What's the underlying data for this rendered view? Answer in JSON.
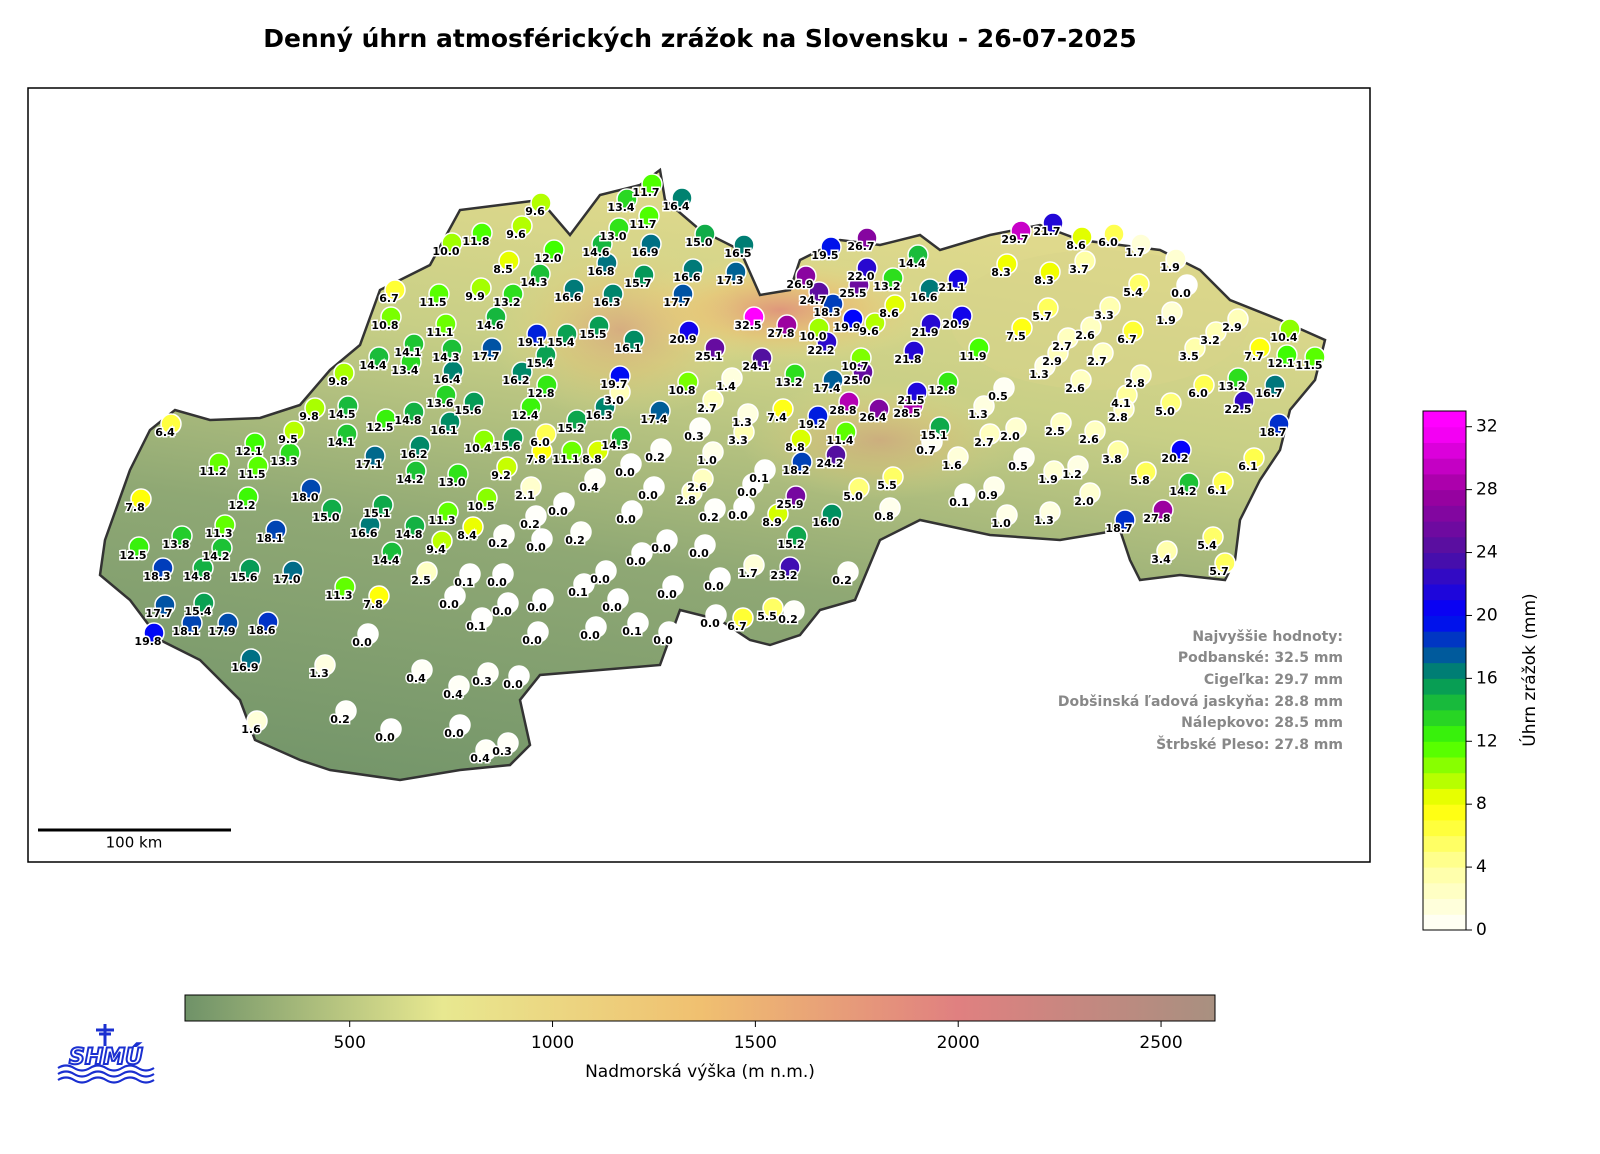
{
  "title": "Denný úhrn atmosférických zrážok na Slovensku - 26-07-2025",
  "stations": {
    "values": [
      9.6,
      11.7,
      13.4,
      16.4,
      11.7,
      13.0,
      11.8,
      9.6,
      10.0,
      14.6,
      16.9,
      15.0,
      16.5,
      12.0,
      8.5,
      16.8,
      14.3,
      15.7,
      16.6,
      17.3,
      6.7,
      11.5,
      9.9,
      13.2,
      16.6,
      16.3,
      17.7,
      10.8,
      11.1,
      14.6,
      19.1,
      15.4,
      15.5,
      16.1,
      20.9,
      14.1,
      14.3,
      17.7,
      15.4,
      14.4,
      13.4,
      16.4,
      16.2,
      9.8,
      12.8,
      19.7,
      3.0,
      10.8,
      1.4,
      25.1,
      13.6,
      15.6,
      12.4,
      16.3,
      17.4,
      2.7,
      1.3,
      9.8,
      14.5,
      12.5,
      14.8,
      16.1,
      15.2,
      6.4,
      9.5,
      14.1,
      16.2,
      10.4,
      15.6,
      6.0,
      14.3,
      0.3,
      3.3,
      7.8,
      11.1,
      8.8,
      0.2,
      1.0,
      12.1,
      13.3,
      17.1,
      11.2,
      11.5,
      14.2,
      13.0,
      9.2,
      0.0,
      0.4,
      0.0,
      2.6,
      2.8,
      0.1,
      0.0,
      7.8,
      18.0,
      12.2,
      2.1,
      10.5,
      15.1,
      15.0,
      0.0,
      0.2,
      0.0,
      0.2,
      0.0,
      11.3,
      18.1,
      11.3,
      16.6,
      14.8,
      8.4,
      0.2,
      0.0,
      0.2,
      13.8,
      9.4,
      14.4,
      14.2,
      12.5,
      0.0,
      0.0,
      0.0,
      18.3,
      14.8,
      15.6,
      17.0,
      2.5,
      0.1,
      0.0,
      0.0,
      0.1,
      0.0,
      0.0,
      11.3,
      7.8,
      0.0,
      17.7,
      15.4,
      0.0,
      0.0,
      0.0,
      0.1,
      17.9,
      18.6,
      18.1,
      19.8,
      0.0,
      0.0,
      0.0,
      0.1,
      0.0,
      0.0,
      6.7,
      5.5,
      0.2,
      16.9,
      1.3,
      0.4,
      0.4,
      0.3,
      0.0,
      0.2,
      1.6,
      0.0,
      0.0,
      0.4,
      0.3,
      19.5,
      26.7,
      22.0,
      14.4,
      26.9,
      25.5,
      13.2,
      16.6,
      21.1,
      24.7,
      18.3,
      8.6,
      32.5,
      27.8,
      10.0,
      19.9,
      9.6,
      21.9,
      20.9,
      22.2,
      10.7,
      21.8,
      24.1,
      13.2,
      25.0,
      11.9,
      17.4,
      28.8,
      26.4,
      28.5,
      21.5,
      12.8,
      7.4,
      19.2,
      15.1,
      0.7,
      8.8,
      11.4,
      24.2,
      18.2,
      1.6,
      5.5,
      5.0,
      25.9,
      0.8,
      8.9,
      16.0,
      15.2,
      1.7,
      23.2,
      0.2,
      0.1,
      0.9,
      1.0,
      1.3,
      2.0,
      0.5,
      1.3,
      2.7,
      2.0,
      0.5,
      1.9,
      1.2,
      2.5,
      2.6,
      3.8,
      5.8,
      18.7,
      27.8,
      3.4,
      5.4,
      5.7,
      14.2,
      6.1,
      20.2,
      6.1,
      18.7,
      22.5,
      16.7,
      13.2,
      6.0,
      5.0,
      2.8,
      4.1,
      2.8,
      2.6,
      1.3,
      2.9,
      2.7,
      2.7,
      2.6,
      6.7,
      7.5,
      5.7,
      3.3,
      5.4,
      1.9,
      3.5,
      3.2,
      2.9,
      7.7,
      10.4,
      12.1,
      11.5,
      0.0,
      1.9,
      1.7,
      6.0,
      8.6,
      21.7,
      29.7,
      8.3,
      8.3,
      3.7
    ],
    "value_labels": [
      "9.6",
      "11.7",
      "13.4",
      "16.4",
      "11.7",
      "13.0",
      "11.8",
      "9.6",
      "10.0",
      "14.6",
      "16.9",
      "15.0",
      "16.5",
      "12.0",
      "8.5",
      "16.8",
      "14.3",
      "15.7",
      "16.6",
      "17.3",
      "6.7",
      "11.5",
      "9.9",
      "13.2",
      "16.6",
      "16.3",
      "17.7",
      "10.8",
      "11.1",
      "14.6",
      "19.1",
      "15.4",
      "15.5",
      "16.1",
      "20.9",
      "14.1",
      "14.3",
      "17.7",
      "15.4",
      "14.4",
      "13.4",
      "16.4",
      "16.2",
      "9.8",
      "12.8",
      "19.7",
      "3.0",
      "10.8",
      "1.4",
      "25.1",
      "13.6",
      "15.6",
      "12.4",
      "16.3",
      "17.4",
      "2.7",
      "1.3",
      "9.8",
      "14.5",
      "12.5",
      "14.8",
      "16.1",
      "15.2",
      "6.4",
      "9.5",
      "14.1",
      "16.2",
      "10.4",
      "15.6",
      "6.0",
      "14.3",
      "0.3",
      "3.3",
      "7.8",
      "11.1",
      "8.8",
      "0.2",
      "1.0",
      "12.1",
      "13.3",
      "17.1",
      "11.2",
      "11.5",
      "14.2",
      "13.0",
      "9.2",
      "0.0",
      "0.4",
      "0.0",
      "2.6",
      "2.8",
      "0.1",
      "0.0",
      "7.8",
      "18.0",
      "12.2",
      "2.1",
      "10.5",
      "15.1",
      "15.0",
      "0.0",
      "0.2",
      "0.0",
      "0.2",
      "0.0",
      "11.3",
      "18.1",
      "11.3",
      "16.6",
      "14.8",
      "8.4",
      "0.2",
      "0.0",
      "0.2",
      "13.8",
      "9.4",
      "14.4",
      "14.2",
      "12.5",
      "0.0",
      "0.0",
      "0.0",
      "18.3",
      "14.8",
      "15.6",
      "17.0",
      "2.5",
      "0.1",
      "0.0",
      "0.0",
      "0.1",
      "0.0",
      "0.0",
      "11.3",
      "7.8",
      "0.0",
      "17.7",
      "15.4",
      "0.0",
      "0.0",
      "0.0",
      "0.1",
      "17.9",
      "18.6",
      "18.1",
      "19.8",
      "0.0",
      "0.0",
      "0.0",
      "0.1",
      "0.0",
      "0.0",
      "6.7",
      "5.5",
      "0.2",
      "16.9",
      "1.3",
      "0.4",
      "0.4",
      "0.3",
      "0.0",
      "0.2",
      "1.6",
      "0.0",
      "0.0",
      "0.4",
      "0.3",
      "19.5",
      "26.7",
      "22.0",
      "14.4",
      "26.9",
      "25.5",
      "13.2",
      "16.6",
      "21.1",
      "24.7",
      "18.3",
      "8.6",
      "32.5",
      "27.8",
      "10.0",
      "19.9",
      "9.6",
      "21.9",
      "20.9",
      "22.2",
      "10.7",
      "21.8",
      "24.1",
      "13.2",
      "25.0",
      "11.9",
      "17.4",
      "28.8",
      "26.4",
      "28.5",
      "21.5",
      "12.8",
      "7.4",
      "19.2",
      "15.1",
      "0.7",
      "8.8",
      "11.4",
      "24.2",
      "18.2",
      "1.6",
      "5.5",
      "5.0",
      "25.9",
      "0.8",
      "8.9",
      "16.0",
      "15.2",
      "1.7",
      "23.2",
      "0.2",
      "0.1",
      "0.9",
      "1.0",
      "1.3",
      "2.0",
      "0.5",
      "1.3",
      "2.7",
      "2.0",
      "0.5",
      "1.9",
      "1.2",
      "2.5",
      "2.6",
      "3.8",
      "5.8",
      "18.7",
      "27.8",
      "3.4",
      "5.4",
      "5.7",
      "14.2",
      "6.1",
      "20.2",
      "6.1",
      "18.7",
      "22.5",
      "16.7",
      "13.2",
      "6.0",
      "5.0",
      "2.8",
      "4.1",
      "2.8",
      "2.6",
      "1.3",
      "2.9",
      "2.7",
      "2.7",
      "2.6",
      "6.7",
      "7.5",
      "5.7",
      "3.3",
      "5.4",
      "1.9",
      "3.5",
      "3.2",
      "2.9",
      "7.7",
      "10.4",
      "12.1",
      "11.5",
      "0.0",
      "1.9",
      "1.7",
      "6.0",
      "8.6",
      "21.7",
      "29.7",
      "8.3",
      "8.3",
      "3.7"
    ]
  },
  "colorbar": {
    "label": "Úhrn zrážok (mm)",
    "ylim": [
      0,
      33
    ],
    "yticks": [
      0,
      4,
      8,
      12,
      16,
      20,
      24,
      28,
      32
    ],
    "colors": [
      "#ffffff",
      "#ffffa0",
      "#ffff00",
      "#40ff00",
      "#009060",
      "#0000ff",
      "#5010a0",
      "#a000a0",
      "#ff00ff"
    ]
  },
  "elevation_bar": {
    "label": "Nadmorská výška (m n.m.)",
    "xlim": [
      94,
      2633
    ],
    "xticks": [
      500,
      1000,
      1500,
      2000,
      2500
    ],
    "colors": [
      "#6f9268",
      "#e8e890",
      "#f0c070",
      "#e08080",
      "#a89080"
    ]
  },
  "scale_label": "100 km",
  "highlights": {
    "title": "Najvyššie hodnoty:",
    "items": [
      "Podbanské: 32.5 mm",
      "Cigeľka: 29.7 mm",
      "Dobšinská ľadová jaskyňa: 28.8 mm",
      "Nálepkovo: 28.5 mm",
      "Štrbské Pleso: 27.8 mm"
    ]
  },
  "logo": "SHMÚ"
}
